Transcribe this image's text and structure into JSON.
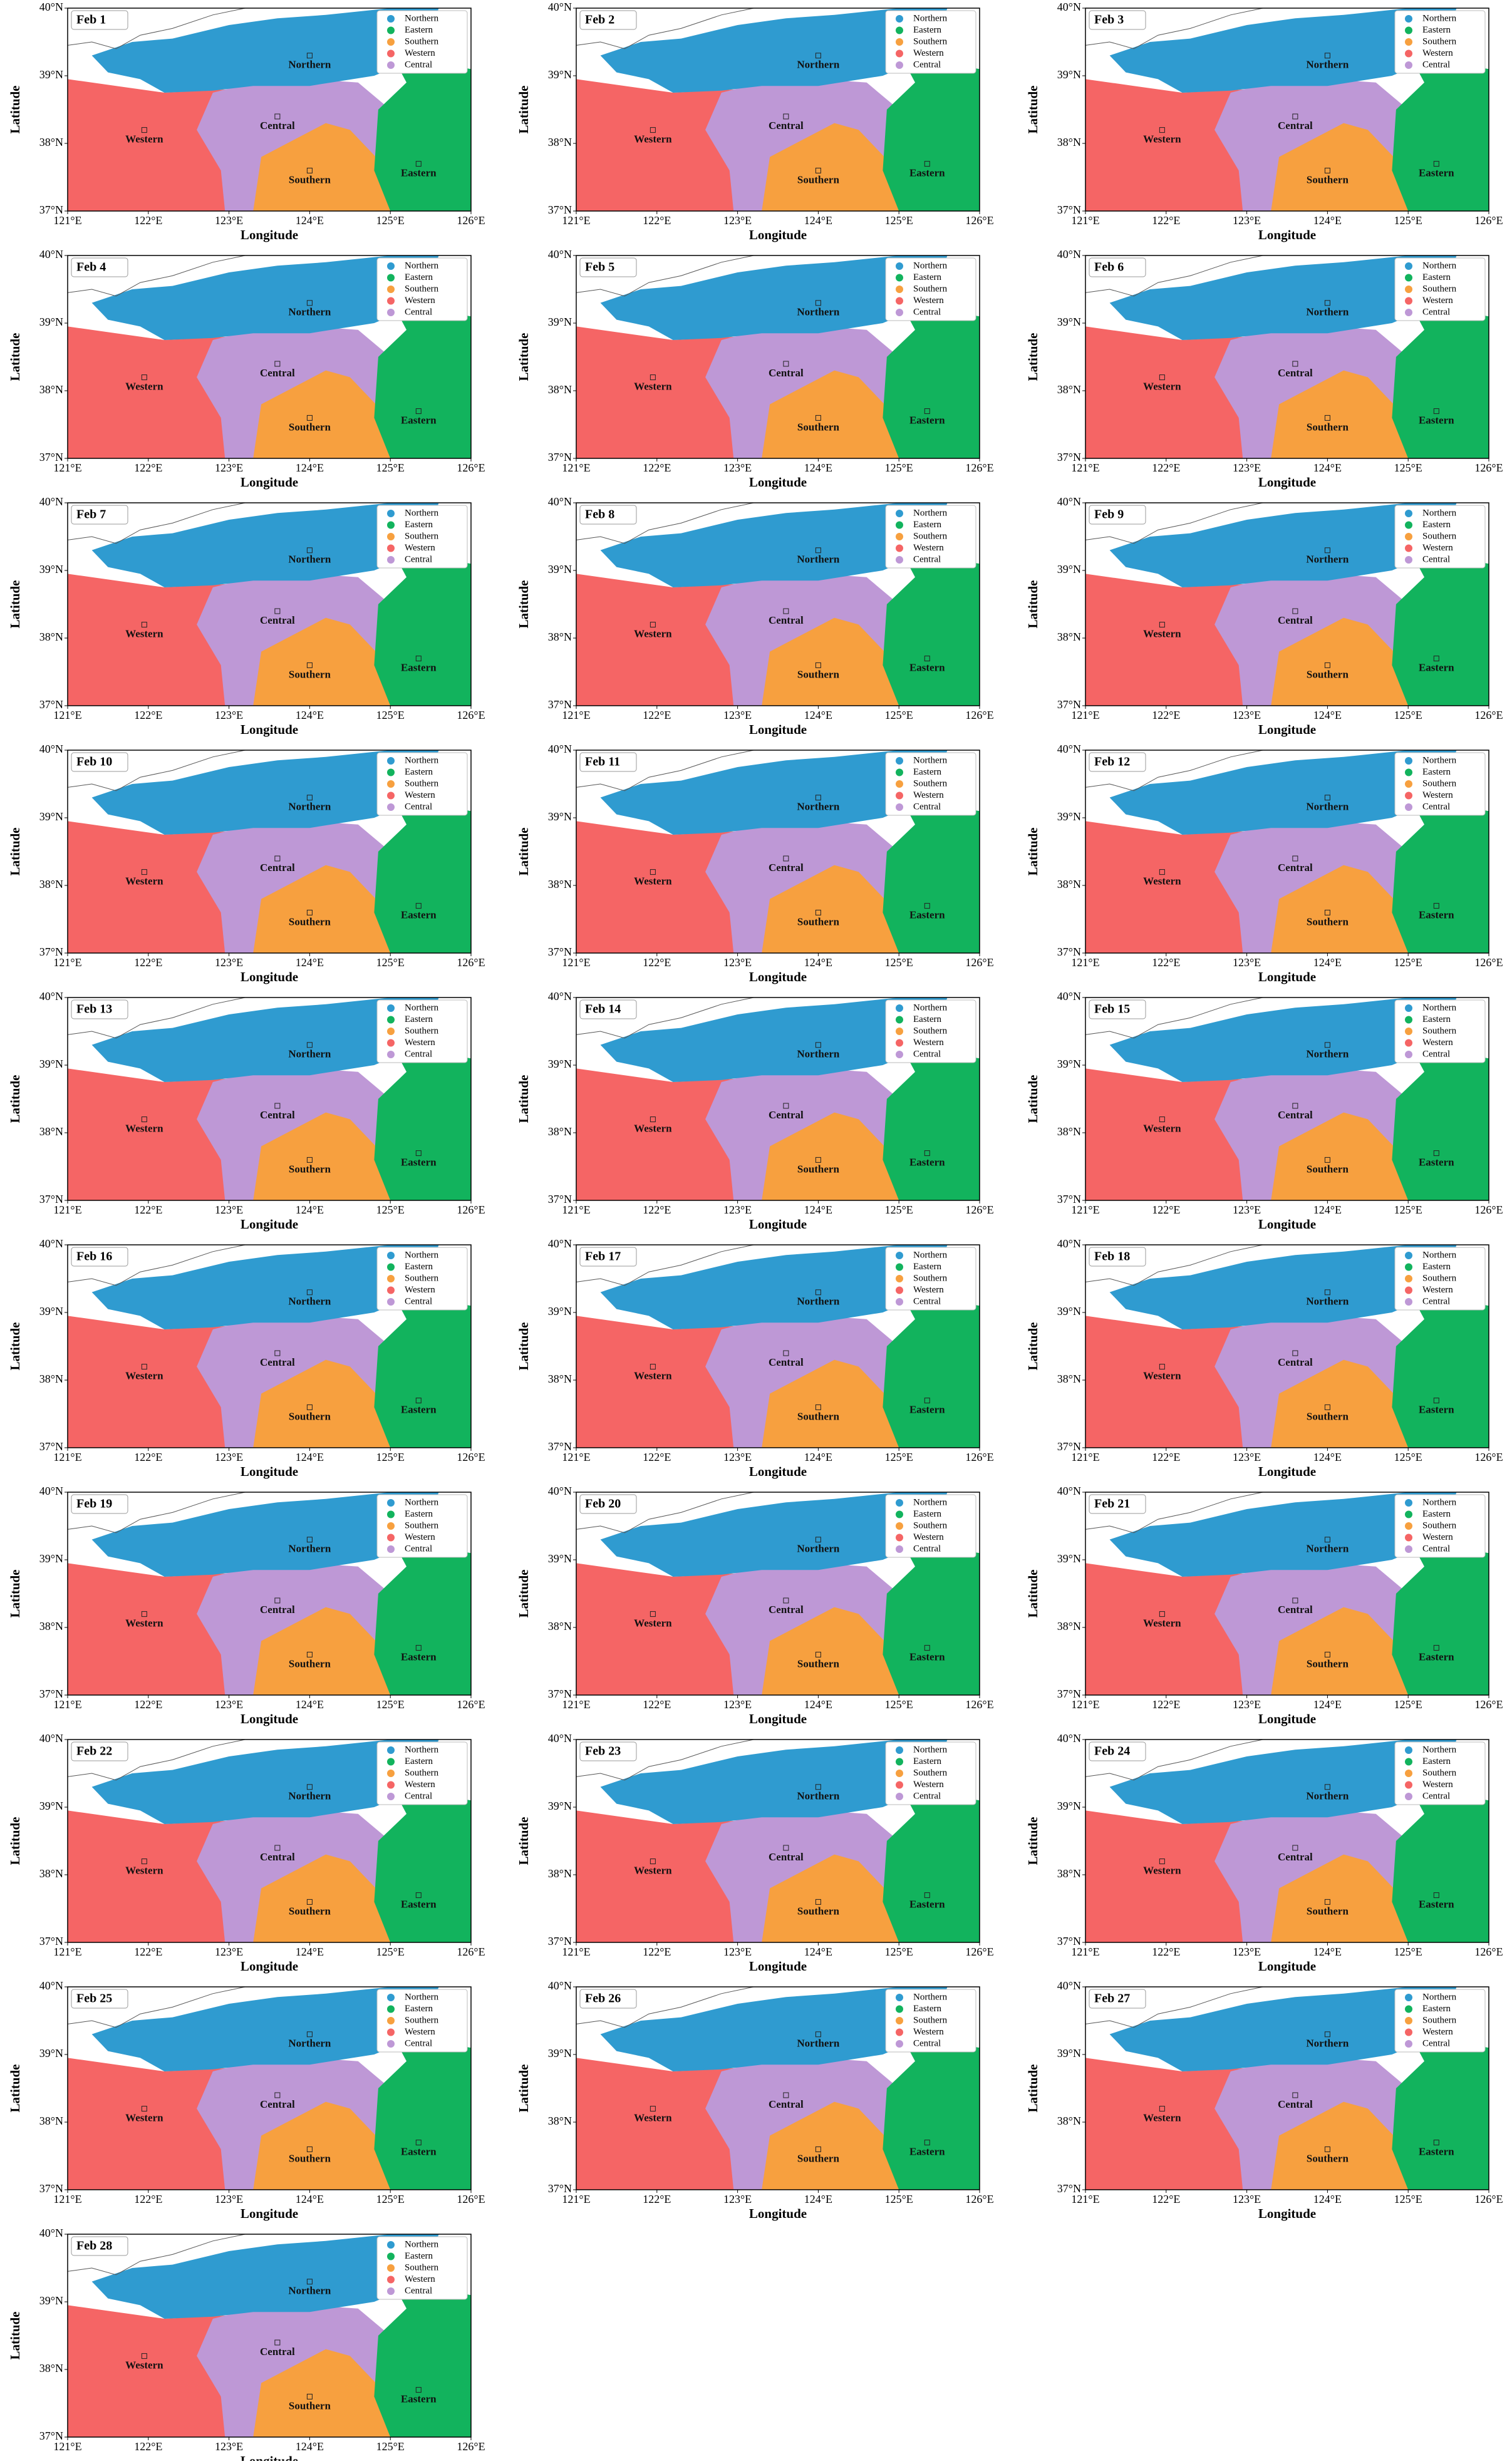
{
  "panels": [
    {
      "title": "Feb 1"
    },
    {
      "title": "Feb 2"
    },
    {
      "title": "Feb 3"
    },
    {
      "title": "Feb 4"
    },
    {
      "title": "Feb 5"
    },
    {
      "title": "Feb 6"
    },
    {
      "title": "Feb 7"
    },
    {
      "title": "Feb 8"
    },
    {
      "title": "Feb 9"
    },
    {
      "title": "Feb 10"
    },
    {
      "title": "Feb 11"
    },
    {
      "title": "Feb 12"
    },
    {
      "title": "Feb 13"
    },
    {
      "title": "Feb 14"
    },
    {
      "title": "Feb 15"
    },
    {
      "title": "Feb 16"
    },
    {
      "title": "Feb 17"
    },
    {
      "title": "Feb 18"
    },
    {
      "title": "Feb 19"
    },
    {
      "title": "Feb 20"
    },
    {
      "title": "Feb 21"
    },
    {
      "title": "Feb 22"
    },
    {
      "title": "Feb 23"
    },
    {
      "title": "Feb 24"
    },
    {
      "title": "Feb 25"
    },
    {
      "title": "Feb 26"
    },
    {
      "title": "Feb 27"
    },
    {
      "title": "Feb 28"
    }
  ],
  "regions": [
    {
      "name": "Northern",
      "color": "#2f9bd0"
    },
    {
      "name": "Eastern",
      "color": "#12b35d"
    },
    {
      "name": "Southern",
      "color": "#f7a03f"
    },
    {
      "name": "Western",
      "color": "#f56565"
    },
    {
      "name": "Central",
      "color": "#be98d6"
    }
  ],
  "x_axis": {
    "label": "Longitude",
    "ticks": [
      {
        "value": 121,
        "label": "121°E"
      },
      {
        "value": 122,
        "label": "122°E"
      },
      {
        "value": 123,
        "label": "123°E"
      },
      {
        "value": 124,
        "label": "124°E"
      },
      {
        "value": 125,
        "label": "125°E"
      },
      {
        "value": 126,
        "label": "126°E"
      }
    ]
  },
  "y_axis": {
    "label": "Latitude",
    "ticks": [
      {
        "value": 37,
        "label": "37°N"
      },
      {
        "value": 38,
        "label": "38°N"
      },
      {
        "value": 39,
        "label": "39°N"
      },
      {
        "value": 40,
        "label": "40°N"
      }
    ]
  }
}
